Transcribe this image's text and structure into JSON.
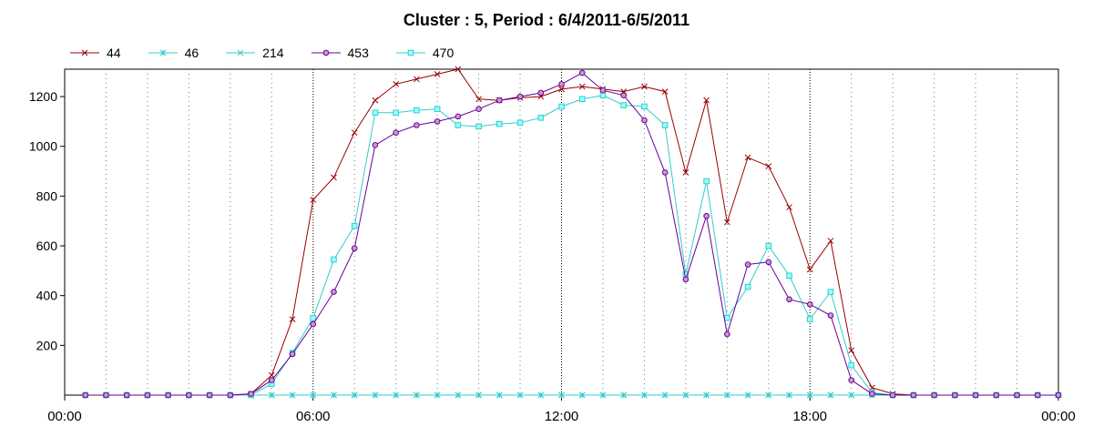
{
  "chart_data": {
    "type": "line",
    "title": "Cluster : 5, Period : 6/4/2011-6/5/2011",
    "xlabel": "",
    "ylabel": "",
    "x_tick_labels": [
      "00:00",
      "06:00",
      "12:00",
      "18:00",
      "00:00"
    ],
    "y_ticks": [
      200,
      400,
      600,
      800,
      1000,
      1200
    ],
    "xlim": [
      0,
      24
    ],
    "ylim": [
      0,
      1310
    ],
    "grid": "dotted",
    "legend_position": "top-left",
    "x_hours": [
      0.5,
      1.0,
      1.5,
      2.0,
      2.5,
      3.0,
      3.5,
      4.0,
      4.5,
      5.0,
      5.5,
      6.0,
      6.5,
      7.0,
      7.5,
      8.0,
      8.5,
      9.0,
      9.5,
      10.0,
      10.5,
      11.0,
      11.5,
      12.0,
      12.5,
      13.0,
      13.5,
      14.0,
      14.5,
      15.0,
      15.5,
      16.0,
      16.5,
      17.0,
      17.5,
      18.0,
      18.5,
      19.0,
      19.5,
      20.0,
      20.5,
      21.0,
      21.5,
      22.0,
      22.5,
      23.0,
      23.5,
      24.0
    ],
    "series": [
      {
        "name": "44",
        "color": "#990000",
        "marker": "x",
        "values": [
          0,
          0,
          0,
          0,
          0,
          0,
          0,
          0,
          5,
          80,
          305,
          785,
          875,
          1055,
          1185,
          1250,
          1270,
          1290,
          1310,
          1190,
          1185,
          1195,
          1200,
          1230,
          1240,
          1230,
          1220,
          1240,
          1220,
          895,
          1185,
          695,
          955,
          920,
          755,
          505,
          620,
          180,
          30,
          5,
          0,
          0,
          0,
          0,
          0,
          0,
          0,
          0
        ]
      },
      {
        "name": "46",
        "color": "#33cccc",
        "marker": "star",
        "values": [
          0,
          0,
          0,
          0,
          0,
          0,
          0,
          0,
          0,
          0,
          0,
          0,
          0,
          0,
          0,
          0,
          0,
          0,
          0,
          0,
          0,
          0,
          0,
          0,
          0,
          0,
          0,
          0,
          0,
          0,
          0,
          0,
          0,
          0,
          0,
          0,
          0,
          0,
          0,
          0,
          0,
          0,
          0,
          0,
          0,
          0,
          0,
          0
        ]
      },
      {
        "name": "214",
        "color": "#33cccc",
        "marker": "x",
        "values": [
          0,
          0,
          0,
          0,
          0,
          0,
          0,
          0,
          0,
          0,
          0,
          0,
          0,
          0,
          0,
          0,
          0,
          0,
          0,
          0,
          0,
          0,
          0,
          0,
          0,
          0,
          0,
          0,
          0,
          0,
          0,
          0,
          0,
          0,
          0,
          0,
          0,
          0,
          0,
          0,
          0,
          0,
          0,
          0,
          0,
          0,
          0,
          0
        ]
      },
      {
        "name": "453",
        "color": "#660099",
        "marker": "circle",
        "values": [
          0,
          0,
          0,
          0,
          0,
          0,
          0,
          0,
          5,
          60,
          165,
          285,
          415,
          590,
          1005,
          1055,
          1085,
          1100,
          1120,
          1150,
          1185,
          1200,
          1215,
          1250,
          1295,
          1225,
          1205,
          1105,
          895,
          465,
          720,
          245,
          525,
          535,
          385,
          365,
          320,
          60,
          5,
          0,
          0,
          0,
          0,
          0,
          0,
          0,
          0,
          0
        ]
      },
      {
        "name": "470",
        "color": "#33cccc",
        "marker": "square",
        "values": [
          0,
          0,
          0,
          0,
          0,
          0,
          0,
          0,
          0,
          45,
          170,
          310,
          545,
          680,
          1135,
          1135,
          1145,
          1150,
          1085,
          1080,
          1090,
          1095,
          1115,
          1160,
          1190,
          1205,
          1165,
          1160,
          1085,
          485,
          860,
          310,
          435,
          600,
          480,
          305,
          415,
          120,
          10,
          0,
          0,
          0,
          0,
          0,
          0,
          0,
          0,
          0
        ]
      }
    ]
  }
}
